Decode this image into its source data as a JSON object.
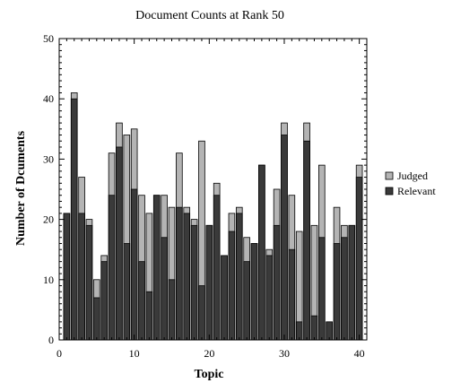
{
  "chart_data": {
    "type": "bar",
    "stacking": "overlay",
    "title": "Document Counts at Rank 50",
    "xlabel": "Topic",
    "ylabel": "Number of Dcuments",
    "xlim": [
      0,
      41
    ],
    "ylim": [
      0,
      50
    ],
    "xticks": [
      0,
      10,
      20,
      30,
      40
    ],
    "yticks": [
      0,
      10,
      20,
      30,
      40,
      50
    ],
    "grid": false,
    "legend_position": "right",
    "x": [
      1,
      2,
      3,
      4,
      5,
      6,
      7,
      8,
      9,
      10,
      11,
      12,
      13,
      14,
      15,
      16,
      17,
      18,
      19,
      20,
      21,
      22,
      23,
      24,
      25,
      26,
      27,
      28,
      29,
      30,
      31,
      32,
      33,
      34,
      35,
      36,
      37,
      38,
      39,
      40
    ],
    "series": [
      {
        "name": "Judged",
        "color": "#b4b4b4",
        "values": [
          21,
          41,
          27,
          20,
          10,
          14,
          31,
          36,
          34,
          35,
          24,
          21,
          24,
          24,
          22,
          31,
          22,
          20,
          33,
          19,
          26,
          14,
          21,
          22,
          17,
          16,
          29,
          15,
          25,
          36,
          24,
          18,
          36,
          19,
          29,
          3,
          22,
          19,
          19,
          29
        ]
      },
      {
        "name": "Relevant",
        "color": "#3a3a3a",
        "values": [
          21,
          40,
          21,
          19,
          7,
          13,
          24,
          32,
          16,
          25,
          13,
          8,
          24,
          17,
          10,
          22,
          21,
          19,
          9,
          19,
          24,
          14,
          18,
          21,
          13,
          16,
          29,
          14,
          19,
          34,
          15,
          3,
          33,
          4,
          17,
          3,
          16,
          17,
          19,
          27
        ]
      }
    ]
  }
}
